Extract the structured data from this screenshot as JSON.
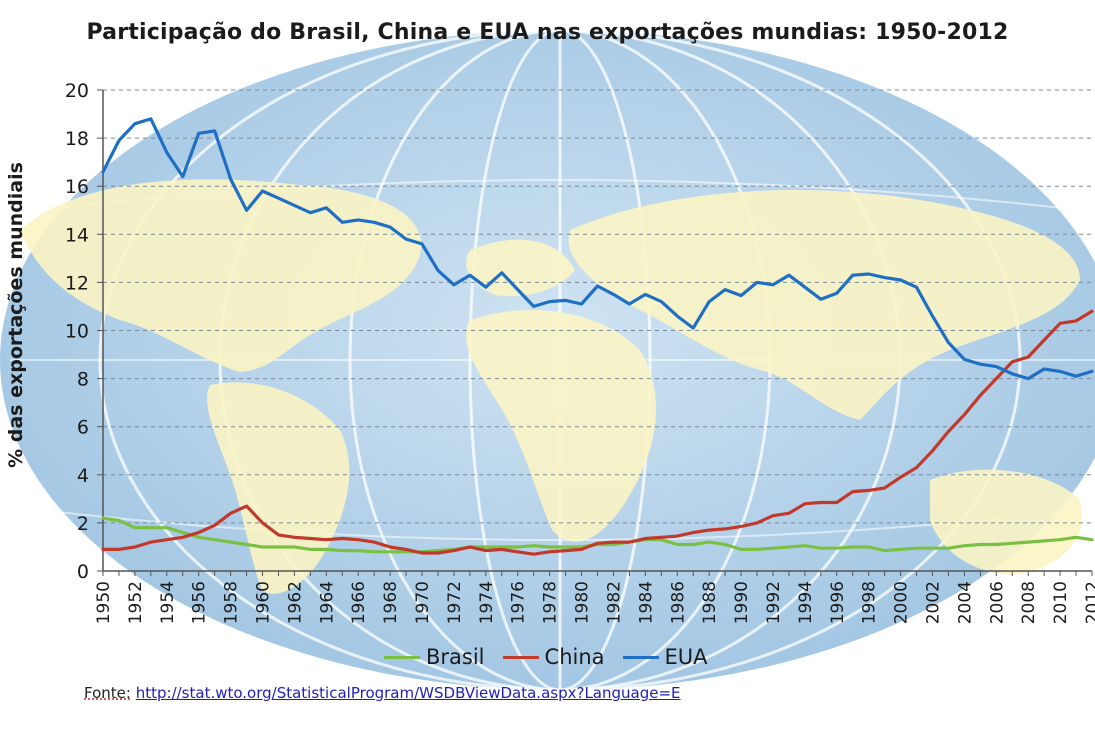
{
  "chart_data": {
    "type": "line",
    "title": "Participação do Brasil, China e EUA nas exportações mundias: 1950-2012",
    "xlabel": "",
    "ylabel": "% das exportações mundiais",
    "xlim": [
      1950,
      2012
    ],
    "ylim": [
      0,
      20
    ],
    "yticks": [
      0,
      2,
      4,
      6,
      8,
      10,
      12,
      14,
      16,
      18,
      20
    ],
    "xticks": [
      "1950",
      "1952",
      "1954",
      "1956",
      "1958",
      "1960",
      "1962",
      "1964",
      "1966",
      "1968",
      "1970",
      "1972",
      "1974",
      "1976",
      "1978",
      "1980",
      "1982",
      "1984",
      "1986",
      "1988",
      "1990",
      "1992",
      "1994",
      "1996",
      "1998",
      "2000",
      "2002",
      "2004",
      "2006",
      "2008",
      "2010",
      "2012"
    ],
    "grid": true,
    "legend_position": "bottom",
    "x": [
      1950,
      1951,
      1952,
      1953,
      1954,
      1955,
      1956,
      1957,
      1958,
      1959,
      1960,
      1961,
      1962,
      1963,
      1964,
      1965,
      1966,
      1967,
      1968,
      1969,
      1970,
      1971,
      1972,
      1973,
      1974,
      1975,
      1976,
      1977,
      1978,
      1979,
      1980,
      1981,
      1982,
      1983,
      1984,
      1985,
      1986,
      1987,
      1988,
      1989,
      1990,
      1991,
      1992,
      1993,
      1994,
      1995,
      1996,
      1997,
      1998,
      1999,
      2000,
      2001,
      2002,
      2003,
      2004,
      2005,
      2006,
      2007,
      2008,
      2009,
      2010,
      2011,
      2012
    ],
    "series": [
      {
        "name": "Brasil",
        "color": "#7ac143",
        "values": [
          2.2,
          2.1,
          1.8,
          1.8,
          1.8,
          1.6,
          1.4,
          1.3,
          1.2,
          1.1,
          1.0,
          1.0,
          1.0,
          0.9,
          0.9,
          0.85,
          0.85,
          0.8,
          0.8,
          0.8,
          0.8,
          0.85,
          0.9,
          1.0,
          1.0,
          1.0,
          1.0,
          1.05,
          1.0,
          1.0,
          1.0,
          1.1,
          1.1,
          1.2,
          1.3,
          1.3,
          1.1,
          1.1,
          1.2,
          1.1,
          0.9,
          0.9,
          0.95,
          1.0,
          1.05,
          0.95,
          0.95,
          1.0,
          1.0,
          0.85,
          0.9,
          0.95,
          0.95,
          0.95,
          1.05,
          1.1,
          1.1,
          1.15,
          1.2,
          1.25,
          1.3,
          1.4,
          1.3
        ]
      },
      {
        "name": "China",
        "color": "#c0392b",
        "values": [
          0.9,
          0.9,
          1.0,
          1.2,
          1.3,
          1.4,
          1.6,
          1.9,
          2.4,
          2.7,
          2.0,
          1.5,
          1.4,
          1.35,
          1.3,
          1.35,
          1.3,
          1.2,
          1.0,
          0.9,
          0.75,
          0.75,
          0.85,
          1.0,
          0.85,
          0.9,
          0.8,
          0.7,
          0.8,
          0.85,
          0.9,
          1.15,
          1.2,
          1.2,
          1.35,
          1.4,
          1.45,
          1.6,
          1.7,
          1.75,
          1.85,
          2.0,
          2.3,
          2.4,
          2.8,
          2.85,
          2.85,
          3.3,
          3.35,
          3.45,
          3.9,
          4.3,
          5.0,
          5.8,
          6.5,
          7.3,
          8.0,
          8.7,
          8.9,
          9.6,
          10.3,
          10.4,
          10.8
        ]
      },
      {
        "name": "EUA",
        "color": "#1f6fc4",
        "values": [
          16.6,
          17.9,
          18.6,
          18.8,
          17.4,
          16.4,
          18.2,
          18.3,
          16.3,
          15.0,
          15.8,
          15.5,
          15.2,
          14.9,
          15.1,
          14.5,
          14.6,
          14.5,
          14.3,
          13.8,
          13.6,
          12.5,
          11.9,
          12.3,
          11.8,
          12.4,
          11.7,
          11.0,
          11.2,
          11.25,
          11.1,
          11.85,
          11.5,
          11.1,
          11.5,
          11.2,
          10.6,
          10.1,
          11.2,
          11.7,
          11.45,
          12.0,
          11.9,
          12.3,
          11.8,
          11.3,
          11.55,
          12.3,
          12.35,
          12.2,
          12.1,
          11.8,
          10.6,
          9.5,
          8.8,
          8.6,
          8.5,
          8.2,
          8.0,
          8.4,
          8.3,
          8.1,
          8.3
        ]
      }
    ]
  },
  "source": {
    "label": "Fonte:",
    "url": "http://stat.wto.org/StatisticalProgram/WSDBViewData.aspx?Language=E"
  }
}
